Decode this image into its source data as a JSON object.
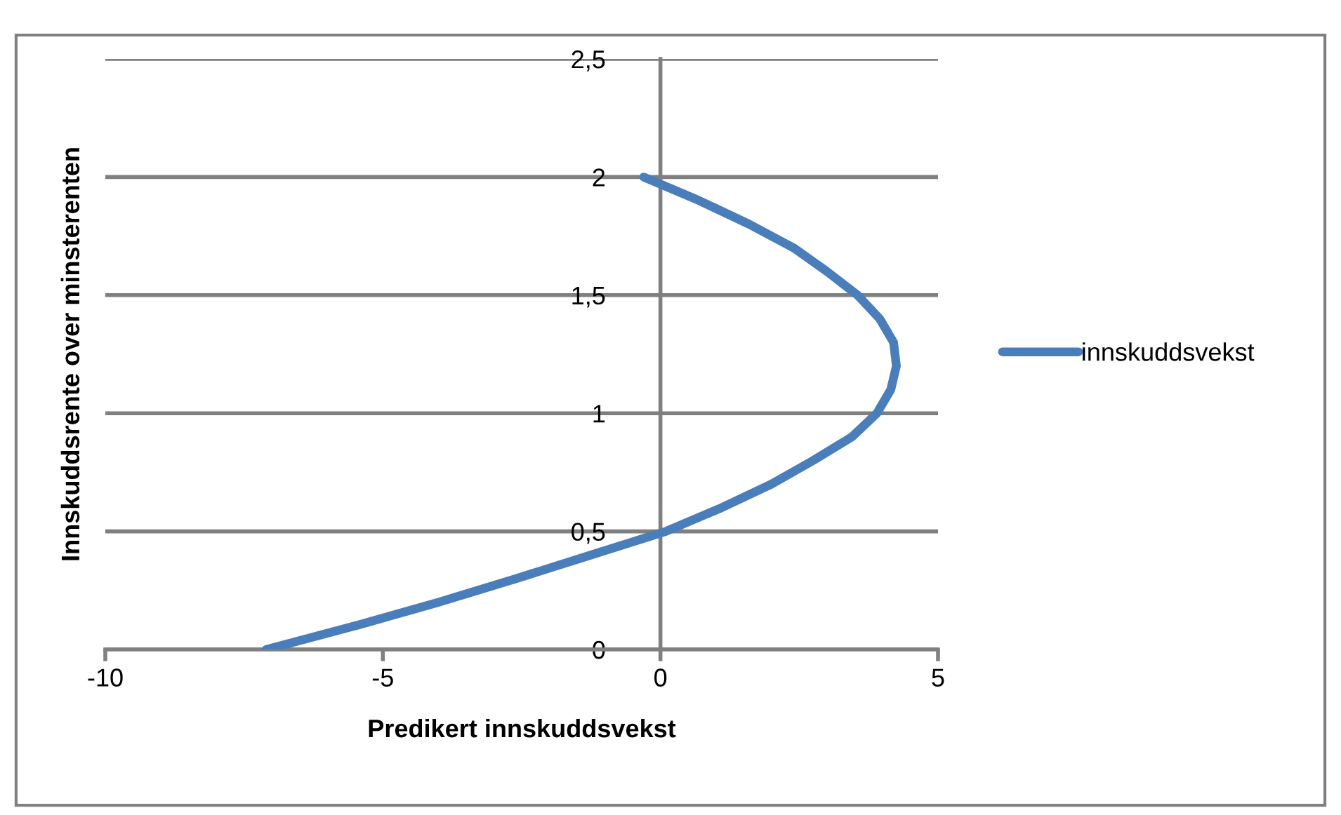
{
  "chart_data": {
    "type": "line",
    "xlabel": "Predikert innskuddsvekst",
    "ylabel": "Innskuddsrente over minsterenten",
    "xlim": [
      -10,
      5
    ],
    "xticks": [
      -10,
      -5,
      0,
      5
    ],
    "ylim": [
      0,
      2.5
    ],
    "yticks": [
      0,
      {
        "value": 0.5,
        "label": "0,5"
      },
      1,
      {
        "value": 1.5,
        "label": "1,5"
      },
      2,
      {
        "value": 2.5,
        "label": "2,5"
      }
    ],
    "grid": "y",
    "legend": "right",
    "marker": "none",
    "line_style": "solid",
    "series": [
      {
        "name": "innskuddsvekst",
        "color": "#4a7ebb",
        "x": [
          -7.1,
          -5.5,
          -4.0,
          -2.6,
          -1.25,
          0.1,
          1.1,
          2.0,
          2.75,
          3.45,
          3.9,
          4.15,
          4.25,
          4.2,
          3.95,
          3.55,
          3.0,
          2.4,
          1.6,
          0.7,
          -0.3
        ],
        "values": [
          0,
          0.1,
          0.2,
          0.3,
          0.4,
          0.5,
          0.6,
          0.7,
          0.8,
          0.9,
          1.0,
          1.1,
          1.2,
          1.3,
          1.4,
          1.5,
          1.6,
          1.7,
          1.8,
          1.9,
          2.0
        ]
      }
    ]
  }
}
